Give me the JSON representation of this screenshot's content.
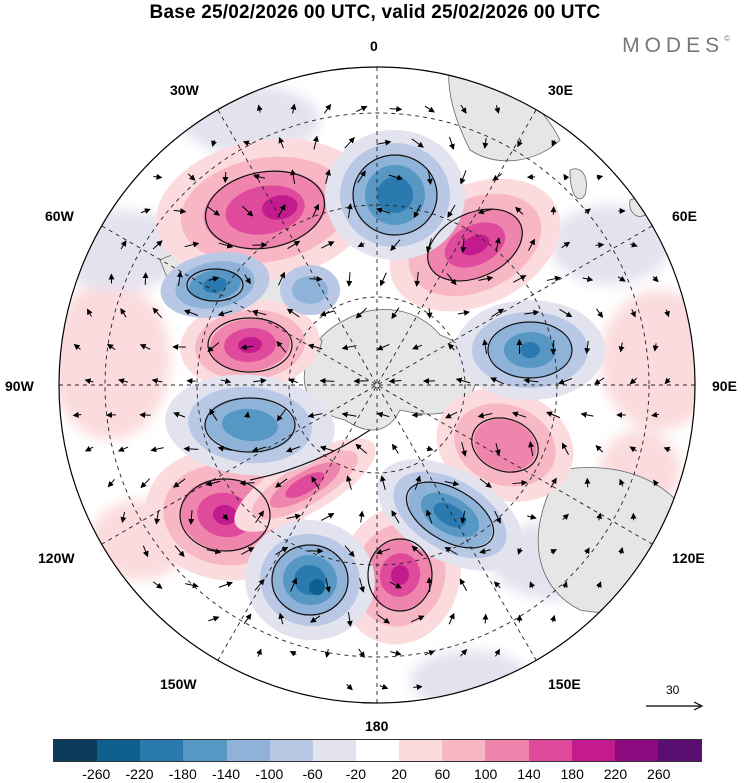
{
  "title": "Base 25/02/2026 00 UTC, valid 25/02/2026 00 UTC",
  "brand": "MODES",
  "brand_mark": "©",
  "longitude_labels": [
    "0",
    "30E",
    "60E",
    "90E",
    "120E",
    "150E",
    "180",
    "150W",
    "120W",
    "90W",
    "60W",
    "30W"
  ],
  "reference_vector": {
    "label": "30"
  },
  "colorbar": {
    "colors": [
      "#0b3b5b",
      "#0f5f8e",
      "#2a7ab0",
      "#5797c4",
      "#8eb2d8",
      "#b9c8e5",
      "#e3e3f0",
      "#ffffff",
      "#fbdbdd",
      "#f7b7c4",
      "#ef85ad",
      "#e04a9c",
      "#c31b8d",
      "#8e0b7f",
      "#5a0e70"
    ],
    "ticks": [
      "-260",
      "-220",
      "-180",
      "-140",
      "-100",
      "-60",
      "-20",
      "20",
      "60",
      "100",
      "140",
      "180",
      "220",
      "260"
    ]
  },
  "map_data": {
    "projection": "south-polar-stereographic",
    "field": "anomaly",
    "positive_centres": [
      {
        "lon_label": "45W",
        "value": 220
      },
      {
        "lon_label": "40E",
        "value": 220
      },
      {
        "lon_label": "80W",
        "value": 220
      },
      {
        "lon_label": "110E",
        "value": 120
      },
      {
        "lon_label": "130W",
        "value": 200
      },
      {
        "lon_label": "160W",
        "value": 180
      },
      {
        "lon_label": "175E",
        "value": 200
      }
    ],
    "negative_centres": [
      {
        "lon_label": "10E",
        "value": -220
      },
      {
        "lon_label": "65W",
        "value": -180
      },
      {
        "lon_label": "85E",
        "value": -180
      },
      {
        "lon_label": "105W",
        "value": -140
      },
      {
        "lon_label": "145E",
        "value": -200
      },
      {
        "lon_label": "160W",
        "value": -240
      }
    ]
  }
}
